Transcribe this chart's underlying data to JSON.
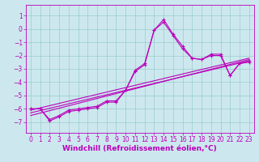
{
  "bg_color": "#cce8ee",
  "line_color": "#bb00bb",
  "grid_color": "#99cccc",
  "xlabel": "Windchill (Refroidissement éolien,°C)",
  "xlabel_fontsize": 6.5,
  "tick_fontsize": 5.5,
  "xlim": [
    -0.5,
    23.5
  ],
  "ylim": [
    -7.8,
    1.8
  ],
  "yticks": [
    1,
    0,
    -1,
    -2,
    -3,
    -4,
    -5,
    -6,
    -7
  ],
  "xticks": [
    0,
    1,
    2,
    3,
    4,
    5,
    6,
    7,
    8,
    9,
    10,
    11,
    12,
    13,
    14,
    15,
    16,
    17,
    18,
    19,
    20,
    21,
    22,
    23
  ],
  "series": [
    {
      "x": [
        0,
        1,
        2,
        3,
        4,
        5,
        6,
        7,
        8,
        9,
        10,
        11,
        12,
        13,
        14,
        15,
        16,
        17,
        18,
        19,
        20,
        21,
        22,
        23
      ],
      "y": [
        -6.0,
        -6.0,
        -6.9,
        -6.6,
        -6.2,
        -6.1,
        -6.0,
        -5.9,
        -5.5,
        -5.5,
        -4.6,
        -3.2,
        -2.7,
        -0.1,
        0.5,
        -0.5,
        -1.5,
        -2.2,
        -2.3,
        -2.0,
        -2.0,
        -3.5,
        -2.6,
        -2.5
      ]
    },
    {
      "x": [
        0,
        23
      ],
      "y": [
        -6.3,
        -2.4
      ]
    },
    {
      "x": [
        0,
        23
      ],
      "y": [
        -6.1,
        -2.2
      ]
    },
    {
      "x": [
        0,
        23
      ],
      "y": [
        -6.5,
        -2.3
      ]
    },
    {
      "x": [
        0,
        1,
        2,
        3,
        4,
        5,
        6,
        7,
        8,
        9,
        10,
        11,
        12,
        13,
        14,
        15,
        16,
        17,
        18,
        19,
        20,
        21,
        22,
        23
      ],
      "y": [
        -6.0,
        -6.0,
        -6.8,
        -6.5,
        -6.1,
        -6.0,
        -5.9,
        -5.8,
        -5.4,
        -5.4,
        -4.6,
        -3.1,
        -2.6,
        -0.1,
        0.7,
        -0.4,
        -1.3,
        -2.2,
        -2.3,
        -1.9,
        -1.9,
        -3.5,
        -2.6,
        -2.4
      ]
    }
  ]
}
